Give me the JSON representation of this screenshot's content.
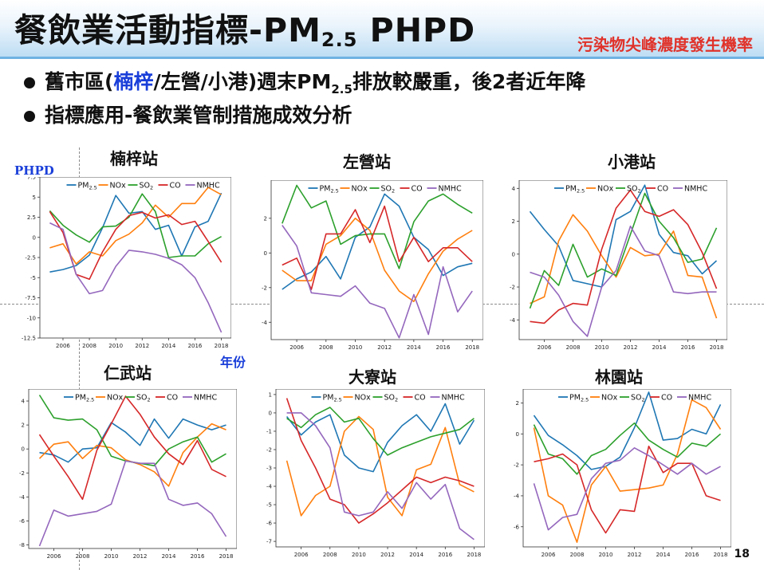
{
  "header": {
    "title_main": "餐飲業活動指標-PM",
    "title_sub": "2.5",
    "title_tail": " PHPD",
    "subtitle": "污染物尖峰濃度發生機率"
  },
  "bullets": [
    {
      "pre": "舊市區(",
      "hl": "楠梓",
      "mid": "/左營/小港)週末PM",
      "sub": "2.5",
      "post": "排放較嚴重，後2者近年降"
    },
    {
      "text": "指標應用-餐飲業管制措施成效分析"
    }
  ],
  "y_axis_label": "PHPD",
  "x_axis_label": "年份",
  "page_number": "18",
  "colors": {
    "PM2.5": "#1f77b4",
    "NOx": "#ff7f0e",
    "SO2": "#2ca02c",
    "CO": "#d62728",
    "NMHC": "#9467bd"
  },
  "chart_data": [
    {
      "type": "line",
      "title": "楠梓站",
      "x": [
        2005,
        2006,
        2007,
        2008,
        2009,
        2010,
        2011,
        2012,
        2013,
        2014,
        2015,
        2016,
        2017,
        2018
      ],
      "ylim": [
        -12.5,
        7.5
      ],
      "yticks": [
        -12.5,
        -10.0,
        -7.5,
        -5.0,
        -2.5,
        0.0,
        2.5,
        5.0,
        7.5
      ],
      "series": [
        {
          "name": "PM2.5",
          "values": [
            -4.3,
            -4.0,
            -3.5,
            -2.2,
            1.2,
            5.2,
            3.0,
            3.2,
            1.0,
            1.5,
            -2.3,
            1.3,
            2.0,
            5.5
          ]
        },
        {
          "name": "NOx",
          "values": [
            -1.3,
            -0.8,
            -3.3,
            -1.8,
            -2.3,
            -0.4,
            0.4,
            1.8,
            4.0,
            2.5,
            4.2,
            4.2,
            6.2,
            5.3
          ]
        },
        {
          "name": "SO2",
          "values": [
            3.3,
            1.5,
            0.3,
            -0.6,
            1.3,
            1.4,
            2.5,
            5.4,
            3.2,
            -2.5,
            -2.3,
            -2.3,
            -0.8,
            0.1
          ]
        },
        {
          "name": "CO",
          "values": [
            3.2,
            0.6,
            -4.6,
            -5.2,
            -1.8,
            1.0,
            2.7,
            3.1,
            2.4,
            2.8,
            1.6,
            2.0,
            -0.5,
            -3.1
          ]
        },
        {
          "name": "NMHC",
          "values": [
            1.8,
            1.0,
            -4.6,
            -7.0,
            -6.6,
            -3.6,
            -1.6,
            -1.8,
            -2.1,
            -2.6,
            -3.4,
            -5.0,
            -8.1,
            -11.8
          ]
        }
      ]
    },
    {
      "type": "line",
      "title": "左營站",
      "x": [
        2005,
        2006,
        2007,
        2008,
        2009,
        2010,
        2011,
        2012,
        2013,
        2014,
        2015,
        2016,
        2017,
        2018
      ],
      "ylim": [
        -5,
        4.2
      ],
      "yticks": [
        -4,
        -2,
        0,
        2
      ],
      "series": [
        {
          "name": "PM2.5",
          "values": [
            -2.1,
            -1.5,
            -1.1,
            -0.2,
            -1.5,
            0.9,
            1.5,
            3.4,
            2.7,
            0.9,
            0.2,
            -1.3,
            -0.8,
            -0.6
          ]
        },
        {
          "name": "NOx",
          "values": [
            -1.0,
            -1.6,
            -1.6,
            0.5,
            1.0,
            2.0,
            1.3,
            -1.0,
            -2.2,
            -2.8,
            -1.2,
            0.1,
            0.8,
            1.3
          ]
        },
        {
          "name": "SO2",
          "values": [
            1.7,
            3.9,
            2.6,
            3.0,
            0.5,
            1.0,
            1.1,
            1.1,
            -0.9,
            1.8,
            3.0,
            3.4,
            2.8,
            2.3
          ]
        },
        {
          "name": "CO",
          "values": [
            -0.7,
            -0.3,
            -2.1,
            1.1,
            1.1,
            2.5,
            0.6,
            2.7,
            -0.5,
            0.9,
            -0.5,
            0.3,
            0.3,
            -0.5
          ]
        },
        {
          "name": "NMHC",
          "values": [
            1.6,
            0.4,
            -2.3,
            -2.4,
            -2.5,
            -1.9,
            -2.9,
            -3.2,
            -4.9,
            -2.4,
            -4.7,
            -0.8,
            -3.4,
            -2.2
          ]
        }
      ]
    },
    {
      "type": "line",
      "title": "小港站",
      "x": [
        2005,
        2006,
        2007,
        2008,
        2009,
        2010,
        2011,
        2012,
        2013,
        2014,
        2015,
        2016,
        2017,
        2018
      ],
      "ylim": [
        -5.2,
        4.5
      ],
      "yticks": [
        -4,
        -2,
        0,
        2,
        4
      ],
      "series": [
        {
          "name": "PM2.5",
          "values": [
            2.6,
            1.5,
            0.5,
            -1.6,
            -1.8,
            -2.0,
            2.1,
            2.6,
            4.2,
            1.2,
            0.1,
            -0.1,
            -1.2,
            -0.4
          ]
        },
        {
          "name": "NOx",
          "values": [
            -3.0,
            -2.6,
            0.8,
            2.4,
            1.4,
            -0.1,
            -1.4,
            0.4,
            -0.1,
            0.0,
            1.4,
            -1.3,
            -1.4,
            -3.9
          ]
        },
        {
          "name": "SO2",
          "values": [
            -3.3,
            -1.0,
            -1.9,
            0.6,
            -1.4,
            -0.9,
            -1.3,
            1.2,
            3.7,
            2.0,
            1.0,
            -0.5,
            -0.3,
            1.6
          ]
        },
        {
          "name": "CO",
          "values": [
            -4.1,
            -4.2,
            -3.4,
            -3.0,
            -3.1,
            0.3,
            2.8,
            3.9,
            2.6,
            2.3,
            2.7,
            1.8,
            0.1,
            -2.1
          ]
        },
        {
          "name": "NMHC",
          "values": [
            -1.1,
            -1.4,
            -2.5,
            -4.1,
            -5.0,
            -2.0,
            -1.0,
            1.7,
            0.2,
            -0.1,
            -2.3,
            -2.4,
            -2.3,
            -2.3
          ]
        }
      ]
    },
    {
      "type": "line",
      "title": "仁武站",
      "x": [
        2005,
        2006,
        2007,
        2008,
        2009,
        2010,
        2011,
        2012,
        2013,
        2014,
        2015,
        2016,
        2017,
        2018
      ],
      "ylim": [
        -8.3,
        5
      ],
      "yticks": [
        -8,
        -6,
        -4,
        -2,
        0,
        2,
        4
      ],
      "series": [
        {
          "name": "PM2.5",
          "values": [
            -0.3,
            -0.5,
            -1.1,
            0.0,
            0.1,
            2.2,
            1.4,
            0.3,
            2.5,
            0.9,
            2.5,
            2.0,
            1.6,
            2.0
          ]
        },
        {
          "name": "NOx",
          "values": [
            -0.8,
            0.4,
            0.6,
            -0.8,
            0.3,
            0.1,
            -0.9,
            -1.3,
            -1.9,
            -3.1,
            -0.3,
            1.0,
            2.1,
            1.6
          ]
        },
        {
          "name": "SO2",
          "values": [
            4.5,
            2.6,
            2.4,
            2.5,
            1.6,
            -0.6,
            -1.0,
            -1.2,
            -1.4,
            0.0,
            0.6,
            1.0,
            -1.1,
            -0.4
          ]
        },
        {
          "name": "CO",
          "values": [
            1.2,
            -0.6,
            -2.3,
            -4.2,
            -0.1,
            2.1,
            4.4,
            2.9,
            1.0,
            -0.4,
            -1.3,
            0.7,
            -1.7,
            -2.3
          ]
        },
        {
          "name": "NMHC",
          "values": [
            -8.1,
            -5.1,
            -5.6,
            -5.4,
            -5.2,
            -4.6,
            -1.0,
            -1.2,
            -1.2,
            -4.2,
            -4.7,
            -4.5,
            -5.4,
            -7.3
          ]
        }
      ]
    },
    {
      "type": "line",
      "title": "大寮站",
      "x": [
        2005,
        2006,
        2007,
        2008,
        2009,
        2010,
        2011,
        2012,
        2013,
        2014,
        2015,
        2016,
        2017,
        2018
      ],
      "ylim": [
        -7.3,
        1.3
      ],
      "yticks": [
        -7,
        -6,
        -5,
        -4,
        -3,
        -2,
        -1,
        0,
        1
      ],
      "series": [
        {
          "name": "PM2.5",
          "values": [
            -0.2,
            -1.2,
            -0.5,
            -0.1,
            -2.3,
            -3.0,
            -3.2,
            -1.6,
            -0.7,
            -0.1,
            -1.0,
            0.5,
            -1.7,
            -0.4
          ]
        },
        {
          "name": "NOx",
          "values": [
            -2.6,
            -5.6,
            -4.5,
            -4.0,
            -1.0,
            -0.2,
            -0.9,
            -4.6,
            -5.6,
            -3.1,
            -2.8,
            -0.8,
            -3.9,
            -4.3
          ]
        },
        {
          "name": "SO2",
          "values": [
            -0.3,
            -0.8,
            -0.1,
            0.3,
            -0.5,
            -0.3,
            -1.4,
            -2.3,
            -1.9,
            -1.6,
            -1.3,
            -1.1,
            -0.9,
            -0.3
          ]
        },
        {
          "name": "CO",
          "values": [
            0.8,
            -1.5,
            -3.0,
            -4.7,
            -5.0,
            -6.0,
            -5.5,
            -4.9,
            -4.2,
            -3.5,
            -3.8,
            -3.5,
            -3.7,
            -4.0
          ]
        },
        {
          "name": "NMHC",
          "values": [
            0.0,
            0.0,
            -0.7,
            -1.9,
            -5.4,
            -5.6,
            -5.4,
            -4.3,
            -5.2,
            -3.8,
            -4.7,
            -3.9,
            -6.3,
            -6.9
          ]
        }
      ]
    },
    {
      "type": "line",
      "title": "林園站",
      "x": [
        2005,
        2006,
        2007,
        2008,
        2009,
        2010,
        2011,
        2012,
        2013,
        2014,
        2015,
        2016,
        2017,
        2018
      ],
      "ylim": [
        -7.3,
        2.9
      ],
      "yticks": [
        -6,
        -4,
        -2,
        0,
        2
      ],
      "series": [
        {
          "name": "PM2.5",
          "values": [
            1.2,
            -0.1,
            -0.7,
            -1.4,
            -2.3,
            -2.1,
            -1.5,
            0.4,
            2.7,
            -0.4,
            -0.3,
            0.3,
            0.0,
            1.9
          ]
        },
        {
          "name": "NOx",
          "values": [
            0.4,
            -4.0,
            -4.6,
            -7.0,
            -3.3,
            -2.1,
            -3.7,
            -3.6,
            -3.5,
            -3.3,
            -1.3,
            2.2,
            1.7,
            0.3
          ]
        },
        {
          "name": "SO2",
          "values": [
            0.6,
            -1.3,
            -1.6,
            -2.6,
            -1.4,
            -1.0,
            -0.1,
            0.7,
            -0.4,
            -1.0,
            -1.5,
            -0.6,
            -0.8,
            0.0
          ]
        },
        {
          "name": "CO",
          "values": [
            -1.8,
            -1.6,
            -1.3,
            -2.0,
            -4.9,
            -6.4,
            -4.9,
            -5.0,
            -0.8,
            -2.5,
            -1.9,
            -1.9,
            -4.0,
            -4.3
          ]
        },
        {
          "name": "NMHC",
          "values": [
            -3.2,
            -6.2,
            -5.4,
            -5.2,
            -2.9,
            -1.9,
            -1.7,
            -0.9,
            -1.4,
            -2.0,
            -2.6,
            -1.9,
            -2.6,
            -2.1
          ]
        }
      ]
    }
  ]
}
